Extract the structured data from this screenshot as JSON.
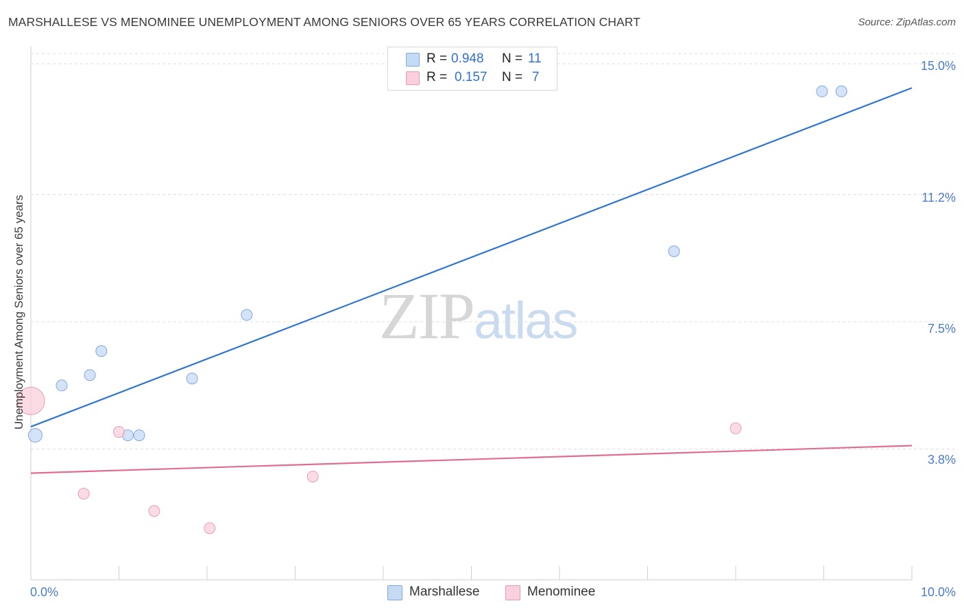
{
  "title": "MARSHALLESE VS MENOMINEE UNEMPLOYMENT AMONG SENIORS OVER 65 YEARS CORRELATION CHART",
  "source": "Source: ZipAtlas.com",
  "watermark": {
    "zip": "ZIP",
    "atlas": "atlas"
  },
  "colors": {
    "blue_line": "#2f74d0",
    "blue_fill": "#c5daf4",
    "blue_stroke": "#7fa8de",
    "pink_line": "#e06b93",
    "pink_fill": "#f9d0dc",
    "pink_stroke": "#eb9ab5",
    "grid": "#dcdcdc",
    "axis_label": "#4a7cc9"
  },
  "legend_top": [
    {
      "r_label": "R =",
      "r_value": "0.948",
      "n_label": "N =",
      "n_value": "11",
      "color": "#c5daf4",
      "border": "#7fa8de"
    },
    {
      "r_label": "R =",
      "r_value": "0.157",
      "n_label": "N =",
      "n_value": "7",
      "color": "#f9d0dc",
      "border": "#eb9ab5"
    }
  ],
  "legend_bottom": [
    {
      "label": "Marshallese",
      "color": "#c5daf4",
      "border": "#7fa8de"
    },
    {
      "label": "Menominee",
      "color": "#f9d0dc",
      "border": "#eb9ab5"
    }
  ],
  "chart_data": {
    "type": "scatter",
    "title": "MARSHALLESE VS MENOMINEE UNEMPLOYMENT AMONG SENIORS OVER 65 YEARS CORRELATION CHART",
    "xlabel": "",
    "ylabel": "Unemployment Among Seniors over 65 years",
    "xlim": [
      0,
      10
    ],
    "ylim": [
      0,
      15.3
    ],
    "x_tick_labels": [
      "0.0%",
      "10.0%"
    ],
    "y_ticks": [
      3.8,
      7.5,
      11.2,
      15.0
    ],
    "y_tick_labels": [
      "3.8%",
      "7.5%",
      "11.2%",
      "15.0%"
    ],
    "grid": "horizontal-dashed",
    "legend_position": "top-center",
    "series": [
      {
        "name": "Marshallese",
        "points": [
          {
            "x": 0.05,
            "y": 4.2,
            "big": true
          },
          {
            "x": 0.35,
            "y": 5.65
          },
          {
            "x": 0.67,
            "y": 5.95
          },
          {
            "x": 0.8,
            "y": 6.65
          },
          {
            "x": 1.1,
            "y": 4.2
          },
          {
            "x": 1.23,
            "y": 4.2
          },
          {
            "x": 1.83,
            "y": 5.85
          },
          {
            "x": 2.45,
            "y": 7.7
          },
          {
            "x": 7.3,
            "y": 9.55
          },
          {
            "x": 8.98,
            "y": 14.2
          },
          {
            "x": 9.2,
            "y": 14.2
          }
        ],
        "trend": {
          "x0": 0,
          "y0": 4.45,
          "x1": 10,
          "y1": 14.3
        }
      },
      {
        "name": "Menominee",
        "points": [
          {
            "x": 0.0,
            "y": 5.2,
            "big": true
          },
          {
            "x": 0.6,
            "y": 2.5
          },
          {
            "x": 1.0,
            "y": 4.3
          },
          {
            "x": 1.4,
            "y": 2.0
          },
          {
            "x": 2.03,
            "y": 1.5
          },
          {
            "x": 3.2,
            "y": 3.0
          },
          {
            "x": 8.0,
            "y": 4.4
          }
        ],
        "trend": {
          "x0": 0,
          "y0": 3.1,
          "x1": 10,
          "y1": 3.9
        }
      }
    ]
  }
}
